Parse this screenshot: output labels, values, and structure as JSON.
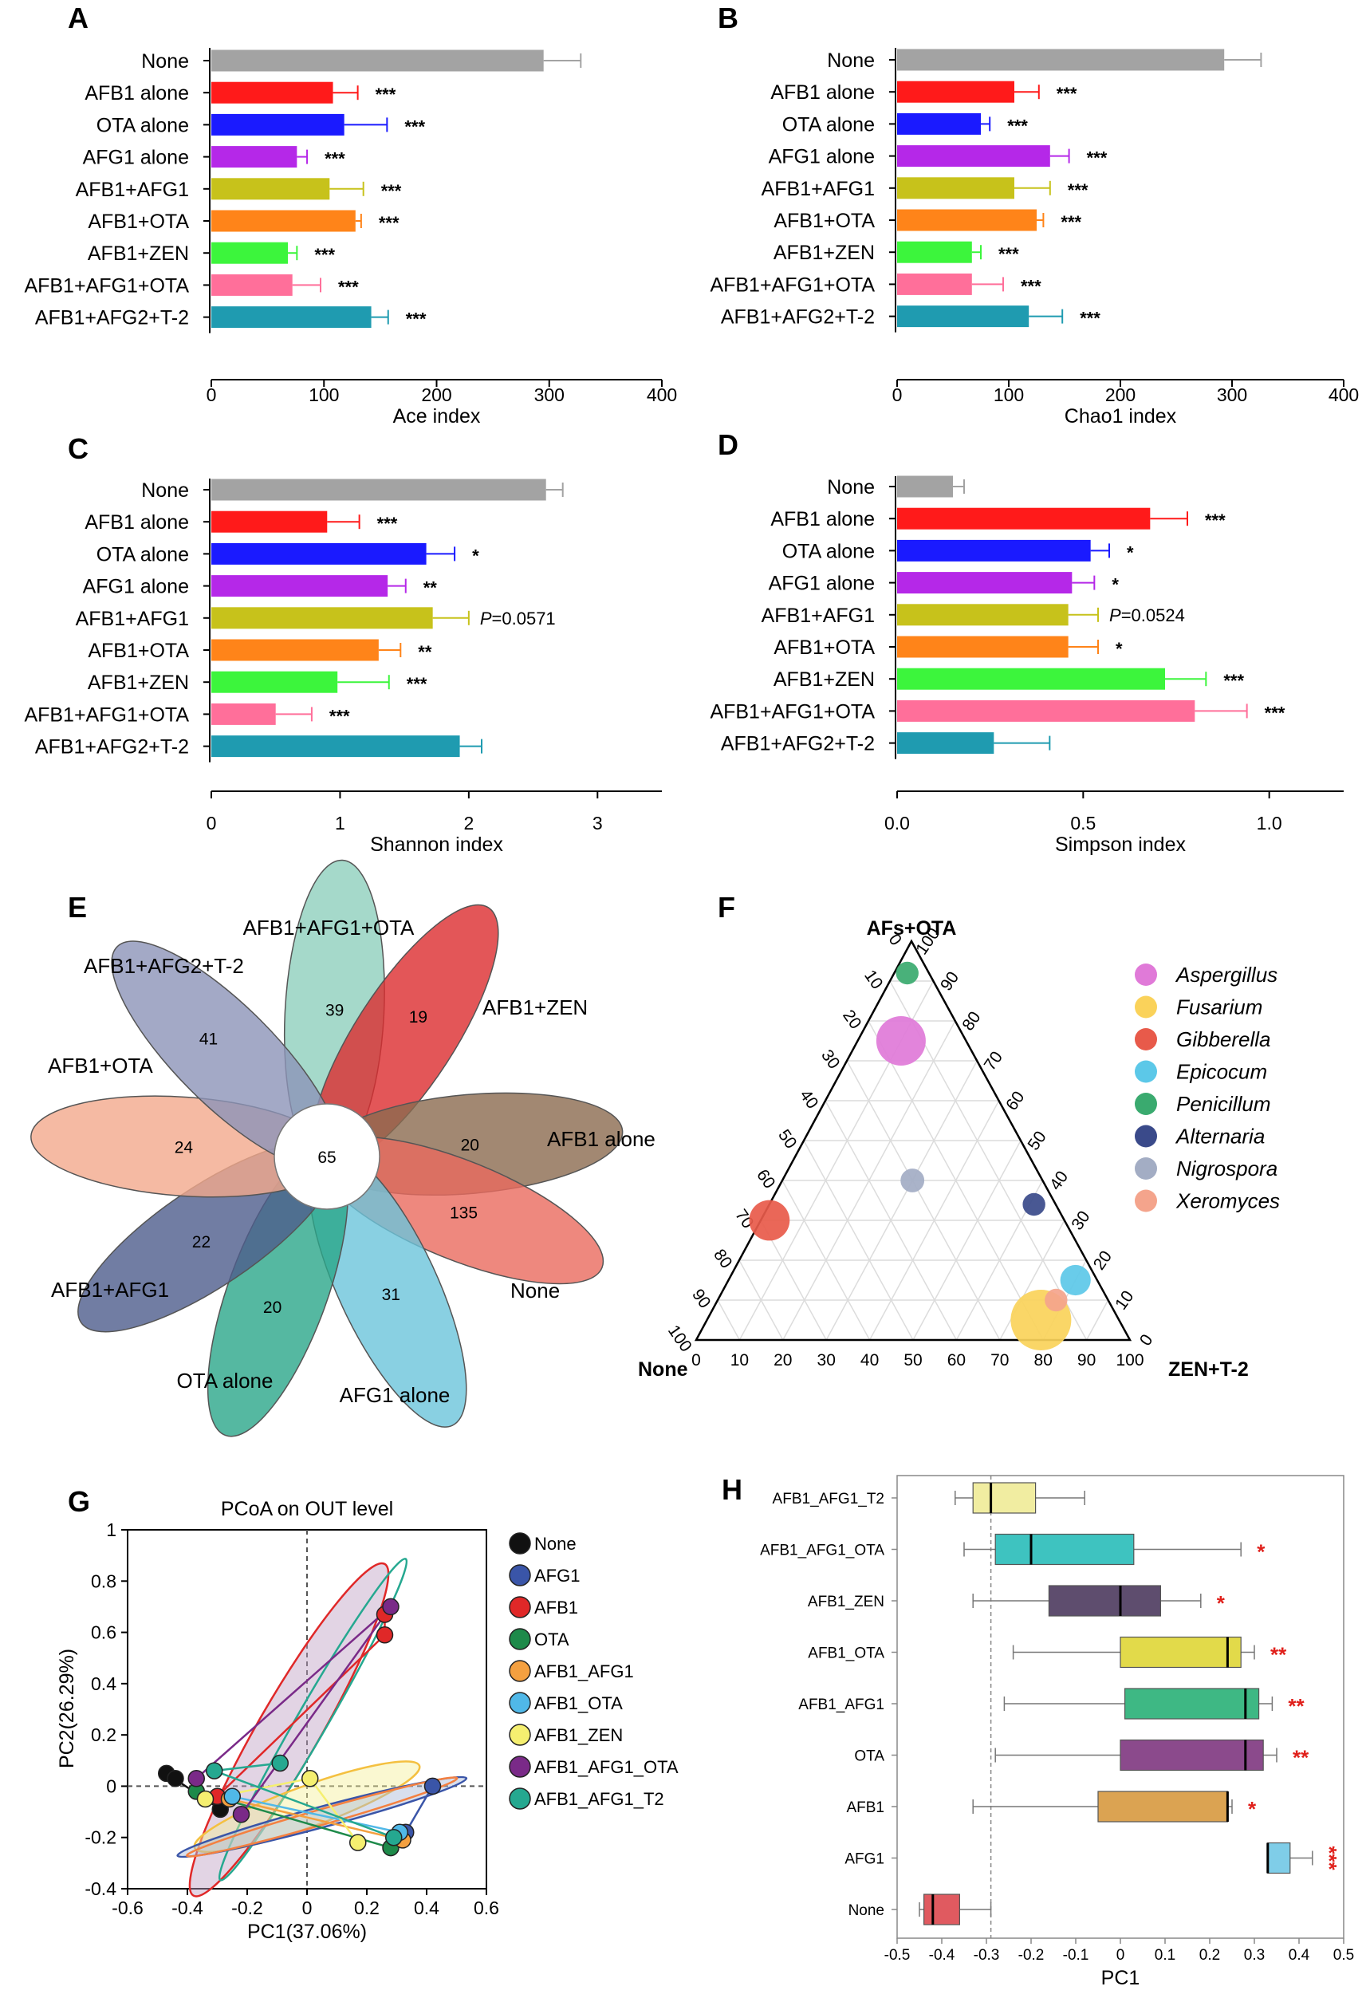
{
  "chart_data": [
    {
      "panel": "A",
      "type": "bar",
      "orientation": "horizontal",
      "categories": [
        "None",
        "AFB1 alone",
        "OTA alone",
        "AFG1 alone",
        "AFB1+AFG1",
        "AFB1+OTA",
        "AFB1+ZEN",
        "AFB1+AFG1+OTA",
        "AFB1+AFG2+T-2"
      ],
      "values": [
        295,
        108,
        118,
        76,
        105,
        128,
        68,
        72,
        142
      ],
      "errors": [
        33,
        22,
        38,
        9,
        30,
        5,
        8,
        25,
        15
      ],
      "significance": [
        "",
        "***",
        "***",
        "***",
        "***",
        "***",
        "***",
        "***",
        "***"
      ],
      "colors": [
        "#a3a3a3",
        "#ff1a1a",
        "#1a1aff",
        "#b528e8",
        "#c7c21b",
        "#ff8419",
        "#3cf53c",
        "#ff6f9a",
        "#1f9bb0"
      ],
      "xlabel": "Ace index",
      "xlim": [
        0,
        400
      ],
      "xticks": [
        0,
        100,
        200,
        300,
        400
      ]
    },
    {
      "panel": "B",
      "type": "bar",
      "orientation": "horizontal",
      "categories": [
        "None",
        "AFB1 alone",
        "OTA alone",
        "AFG1 alone",
        "AFB1+AFG1",
        "AFB1+OTA",
        "AFB1+ZEN",
        "AFB1+AFG1+OTA",
        "AFB1+AFG2+T-2"
      ],
      "values": [
        293,
        105,
        75,
        137,
        105,
        125,
        67,
        67,
        118
      ],
      "errors": [
        33,
        22,
        8,
        17,
        32,
        6,
        8,
        28,
        30
      ],
      "significance": [
        "",
        "***",
        "***",
        "***",
        "***",
        "***",
        "***",
        "***",
        "***"
      ],
      "colors": [
        "#a3a3a3",
        "#ff1a1a",
        "#1a1aff",
        "#b528e8",
        "#c7c21b",
        "#ff8419",
        "#3cf53c",
        "#ff6f9a",
        "#1f9bb0"
      ],
      "xlabel": "Chao1 index",
      "xlim": [
        0,
        400
      ],
      "xticks": [
        0,
        100,
        200,
        300,
        400
      ]
    },
    {
      "panel": "C",
      "type": "bar",
      "orientation": "horizontal",
      "categories": [
        "None",
        "AFB1 alone",
        "OTA alone",
        "AFG1 alone",
        "AFB1+AFG1",
        "AFB1+OTA",
        "AFB1+ZEN",
        "AFB1+AFG1+OTA",
        "AFB1+AFG2+T-2"
      ],
      "values": [
        2.6,
        0.9,
        1.67,
        1.37,
        1.72,
        1.3,
        0.98,
        0.5,
        1.93
      ],
      "errors": [
        0.13,
        0.25,
        0.22,
        0.14,
        0.28,
        0.17,
        0.4,
        0.28,
        0.17
      ],
      "significance": [
        "",
        "***",
        "*",
        "**",
        "P=0.0571",
        "**",
        "***",
        "***",
        ""
      ],
      "colors": [
        "#a3a3a3",
        "#ff1a1a",
        "#1a1aff",
        "#b528e8",
        "#c7c21b",
        "#ff8419",
        "#3cf53c",
        "#ff6f9a",
        "#1f9bb0"
      ],
      "xlabel": "Shannon index",
      "xlim": [
        0,
        3.5
      ],
      "xticks": [
        0,
        1,
        2,
        3
      ]
    },
    {
      "panel": "D",
      "type": "bar",
      "orientation": "horizontal",
      "categories": [
        "None",
        "AFB1 alone",
        "OTA alone",
        "AFG1 alone",
        "AFB1+AFG1",
        "AFB1+OTA",
        "AFB1+ZEN",
        "AFB1+AFG1+OTA",
        "AFB1+AFG2+T-2"
      ],
      "values": [
        0.15,
        0.68,
        0.52,
        0.47,
        0.46,
        0.46,
        0.72,
        0.8,
        0.26
      ],
      "errors": [
        0.03,
        0.1,
        0.05,
        0.06,
        0.08,
        0.08,
        0.11,
        0.14,
        0.15
      ],
      "significance": [
        "",
        "***",
        "*",
        "*",
        "P=0.0524",
        "*",
        "***",
        "***",
        ""
      ],
      "colors": [
        "#a3a3a3",
        "#ff1a1a",
        "#1a1aff",
        "#b528e8",
        "#c7c21b",
        "#ff8419",
        "#3cf53c",
        "#ff6f9a",
        "#1f9bb0"
      ],
      "xlabel": "Simpson index",
      "xlim": [
        0,
        1.2
      ],
      "xticks": [
        0.0,
        0.5,
        1.0
      ]
    },
    {
      "panel": "E",
      "type": "venn",
      "sets": [
        {
          "name": "AFB1+AFG1+OTA",
          "unique": 39,
          "color": "#8fcfbd"
        },
        {
          "name": "AFB1+ZEN",
          "unique": 19,
          "color": "#dc2c2e"
        },
        {
          "name": "AFB1 alone",
          "unique": 20,
          "color": "#8b6a4f"
        },
        {
          "name": "None",
          "unique": 135,
          "color": "#ea6a5e"
        },
        {
          "name": "AFG1 alone",
          "unique": 31,
          "color": "#6cc4db"
        },
        {
          "name": "OTA alone",
          "unique": 20,
          "color": "#2aa68a"
        },
        {
          "name": "AFB1+AFG1",
          "unique": 22,
          "color": "#4d5d8c"
        },
        {
          "name": "AFB1+OTA",
          "unique": 24,
          "color": "#f2a98c"
        },
        {
          "name": "AFB1+AFG2+T-2",
          "unique": 41,
          "color": "#8c93b8"
        }
      ],
      "core": 65
    },
    {
      "panel": "F",
      "type": "ternary",
      "axes": {
        "top": "AFs+OTA",
        "left": "None",
        "right": "ZEN+T-2"
      },
      "ticks": [
        0,
        10,
        20,
        30,
        40,
        50,
        60,
        70,
        80,
        90,
        100
      ],
      "points": [
        {
          "name": "Aspergillus",
          "afs": 75,
          "none": 15,
          "zen": 10,
          "size": 3,
          "color": "#e07ad8"
        },
        {
          "name": "Fusarium",
          "afs": 5,
          "none": 18,
          "zen": 77,
          "size": 4,
          "color": "#fad25a"
        },
        {
          "name": "Gibberella",
          "afs": 30,
          "none": 68,
          "zen": 2,
          "size": 2.2,
          "color": "#e85a4a"
        },
        {
          "name": "Epicocum",
          "afs": 15,
          "none": 5,
          "zen": 80,
          "size": 1.3,
          "color": "#5cc8e8"
        },
        {
          "name": "Penicillum",
          "afs": 92,
          "none": 5,
          "zen": 3,
          "size": 0.6,
          "color": "#3aaa6f"
        },
        {
          "name": "Alternaria",
          "afs": 34,
          "none": 5,
          "zen": 61,
          "size": 0.6,
          "color": "#3a4a8a"
        },
        {
          "name": "Nigrospora",
          "afs": 40,
          "none": 30,
          "zen": 30,
          "size": 0.7,
          "color": "#a3adc4"
        },
        {
          "name": "Xeromyces",
          "afs": 10,
          "none": 12,
          "zen": 78,
          "size": 0.6,
          "color": "#f4a48c"
        }
      ]
    },
    {
      "panel": "G",
      "type": "scatter",
      "title": "PCoA on OUT level",
      "xlabel": "PC1(37.06%)",
      "ylabel": "PC2(26.29%)",
      "xlim": [
        -0.6,
        0.6
      ],
      "ylim": [
        -0.4,
        1.0
      ],
      "xticks": [
        -0.6,
        -0.4,
        -0.2,
        0,
        0.2,
        0.4,
        0.6
      ],
      "yticks": [
        -0.4,
        -0.2,
        0,
        0.2,
        0.4,
        0.6,
        0.8,
        1
      ],
      "series": [
        {
          "name": "None",
          "color": "#111111",
          "points": [
            [
              -0.47,
              0.05
            ],
            [
              -0.44,
              0.03
            ],
            [
              -0.29,
              -0.09
            ]
          ]
        },
        {
          "name": "AFG1",
          "color": "#3a55a8",
          "points": [
            [
              0.42,
              0.0
            ],
            [
              0.33,
              -0.18
            ]
          ]
        },
        {
          "name": "AFB1",
          "color": "#e02828",
          "points": [
            [
              0.26,
              0.59
            ],
            [
              0.26,
              0.67
            ],
            [
              -0.3,
              -0.04
            ]
          ]
        },
        {
          "name": "OTA",
          "color": "#1e8a4a",
          "points": [
            [
              0.28,
              -0.24
            ],
            [
              -0.37,
              -0.02
            ]
          ]
        },
        {
          "name": "AFB1_AFG1",
          "color": "#f4a040",
          "points": [
            [
              0.32,
              -0.21
            ],
            [
              -0.26,
              -0.05
            ]
          ]
        },
        {
          "name": "AFB1_OTA",
          "color": "#50b8e8",
          "points": [
            [
              -0.25,
              -0.04
            ],
            [
              0.31,
              -0.18
            ]
          ]
        },
        {
          "name": "AFB1_ZEN",
          "color": "#f5ef70",
          "points": [
            [
              0.01,
              0.03
            ],
            [
              -0.34,
              -0.05
            ],
            [
              0.17,
              -0.22
            ]
          ]
        },
        {
          "name": "AFB1_AFG1_OTA",
          "color": "#7a2a88",
          "points": [
            [
              0.28,
              0.7
            ],
            [
              -0.22,
              -0.11
            ],
            [
              -0.37,
              0.03
            ]
          ]
        },
        {
          "name": "AFB1_AFG1_T2",
          "color": "#25a890",
          "points": [
            [
              -0.31,
              0.06
            ],
            [
              -0.09,
              0.09
            ],
            [
              0.29,
              -0.2
            ]
          ]
        }
      ]
    },
    {
      "panel": "H",
      "type": "box",
      "xlabel": "PC1",
      "xlim": [
        -0.5,
        0.5
      ],
      "xticks": [
        -0.5,
        -0.4,
        -0.3,
        -0.2,
        -0.1,
        0,
        0.1,
        0.2,
        0.3,
        0.4,
        0.5
      ],
      "reference_line": -0.29,
      "boxes": [
        {
          "name": "AFB1_AFG1_T2",
          "min": -0.37,
          "q1": -0.33,
          "median": -0.29,
          "q3": -0.19,
          "max": -0.08,
          "color": "#f1eda1",
          "sig": ""
        },
        {
          "name": "AFB1_AFG1_OTA",
          "min": -0.35,
          "q1": -0.28,
          "median": -0.2,
          "q3": 0.03,
          "max": 0.27,
          "color": "#3ec3c0",
          "sig": "*"
        },
        {
          "name": "AFB1_ZEN",
          "min": -0.33,
          "q1": -0.16,
          "median": 0.0,
          "q3": 0.09,
          "max": 0.18,
          "color": "#5e4d6e",
          "sig": "*"
        },
        {
          "name": "AFB1_OTA",
          "min": -0.24,
          "q1": 0.0,
          "median": 0.24,
          "q3": 0.27,
          "max": 0.3,
          "color": "#e2da4a",
          "sig": "**"
        },
        {
          "name": "AFB1_AFG1",
          "min": -0.26,
          "q1": 0.01,
          "median": 0.28,
          "q3": 0.31,
          "max": 0.34,
          "color": "#3eb884",
          "sig": "**"
        },
        {
          "name": "OTA",
          "min": -0.28,
          "q1": 0.0,
          "median": 0.28,
          "q3": 0.32,
          "max": 0.35,
          "color": "#8b4a8c",
          "sig": "**"
        },
        {
          "name": "AFB1",
          "min": -0.33,
          "q1": -0.05,
          "median": 0.24,
          "q3": 0.24,
          "max": 0.25,
          "color": "#dba352",
          "sig": "*"
        },
        {
          "name": "AFG1",
          "min": 0.33,
          "q1": 0.33,
          "median": 0.33,
          "q3": 0.38,
          "max": 0.43,
          "color": "#7fcde8",
          "sig": "***"
        },
        {
          "name": "None",
          "min": -0.45,
          "q1": -0.44,
          "median": -0.42,
          "q3": -0.36,
          "max": -0.29,
          "color": "#e05a60",
          "sig": ""
        }
      ]
    }
  ]
}
